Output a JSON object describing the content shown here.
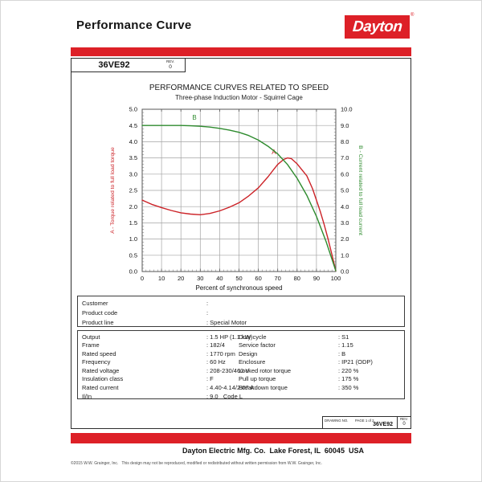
{
  "header": {
    "title": "Performance Curve",
    "brand": "Dayton",
    "registered": "®",
    "model": "36VE92",
    "rev_label": "REV.",
    "rev_value": "0"
  },
  "chart_data": {
    "type": "line",
    "title": "PERFORMANCE CURVES RELATED TO SPEED",
    "subtitle": "Three-phase Induction Motor - Squirrel Cage",
    "xlabel": "Percent of synchronous speed",
    "xlim": [
      0,
      100
    ],
    "x_ticks": [
      0,
      10,
      20,
      30,
      40,
      50,
      60,
      70,
      80,
      90,
      100
    ],
    "grid": true,
    "left_axis": {
      "label": "A - Torque related to full load torque",
      "lim": [
        0.0,
        5.0
      ],
      "ticks": [
        0.0,
        0.5,
        1.0,
        1.5,
        2.0,
        2.5,
        3.0,
        3.5,
        4.0,
        4.5,
        5.0
      ],
      "color": "#cc2227"
    },
    "right_axis": {
      "label": "B - Current related to full load current",
      "lim": [
        0.0,
        10.0
      ],
      "ticks": [
        0.0,
        1.0,
        2.0,
        3.0,
        4.0,
        5.0,
        6.0,
        7.0,
        8.0,
        9.0,
        10.0
      ],
      "color": "#2e8b2e"
    },
    "series": [
      {
        "name": "A",
        "axis": "left",
        "color": "#cc2227",
        "label_pos": {
          "x": 68,
          "y": 3.62
        },
        "points": [
          [
            0,
            2.2
          ],
          [
            5,
            2.07
          ],
          [
            10,
            1.97
          ],
          [
            15,
            1.88
          ],
          [
            20,
            1.81
          ],
          [
            25,
            1.77
          ],
          [
            30,
            1.75
          ],
          [
            35,
            1.79
          ],
          [
            40,
            1.87
          ],
          [
            45,
            1.98
          ],
          [
            50,
            2.12
          ],
          [
            55,
            2.33
          ],
          [
            60,
            2.58
          ],
          [
            65,
            2.92
          ],
          [
            68,
            3.15
          ],
          [
            70,
            3.3
          ],
          [
            73,
            3.45
          ],
          [
            75,
            3.5
          ],
          [
            77,
            3.48
          ],
          [
            80,
            3.32
          ],
          [
            83,
            3.1
          ],
          [
            85,
            2.95
          ],
          [
            88,
            2.55
          ],
          [
            90,
            2.2
          ],
          [
            92,
            1.85
          ],
          [
            94,
            1.45
          ],
          [
            96,
            1.0
          ],
          [
            98,
            0.52
          ],
          [
            100,
            0.02
          ]
        ]
      },
      {
        "name": "B",
        "axis": "right",
        "color": "#2e8b2e",
        "label_pos": {
          "x": 27,
          "y": 9.35
        },
        "points": [
          [
            0,
            9.0
          ],
          [
            5,
            9.0
          ],
          [
            10,
            9.0
          ],
          [
            15,
            9.0
          ],
          [
            20,
            9.0
          ],
          [
            25,
            8.98
          ],
          [
            30,
            8.95
          ],
          [
            35,
            8.9
          ],
          [
            40,
            8.82
          ],
          [
            45,
            8.72
          ],
          [
            50,
            8.58
          ],
          [
            55,
            8.38
          ],
          [
            60,
            8.1
          ],
          [
            65,
            7.72
          ],
          [
            70,
            7.25
          ],
          [
            75,
            6.6
          ],
          [
            80,
            5.75
          ],
          [
            85,
            4.7
          ],
          [
            90,
            3.4
          ],
          [
            95,
            1.85
          ],
          [
            100,
            0.05
          ]
        ]
      }
    ]
  },
  "customer_box": {
    "rows": [
      {
        "label": "Customer",
        "value": ""
      },
      {
        "label": "Product code",
        "value": ""
      },
      {
        "label": "Product line",
        "value": "Special Motor"
      }
    ]
  },
  "specs": {
    "left": [
      {
        "label": "Output",
        "value": "1.5 HP (1.1 kW)"
      },
      {
        "label": "Frame",
        "value": "182/4"
      },
      {
        "label": "Rated speed",
        "value": "1770 rpm"
      },
      {
        "label": "Frequency",
        "value": "60 Hz"
      },
      {
        "label": "Rated voltage",
        "value": "208-230/460 V"
      },
      {
        "label": "Insulation class",
        "value": "F"
      },
      {
        "label": "Rated current",
        "value": "4.40-4.14/2.07 A"
      },
      {
        "label": "Il/In",
        "value": "9.0   Code L"
      }
    ],
    "right": [
      {
        "label": "Duty cycle",
        "value": "S1"
      },
      {
        "label": "Service factor",
        "value": "1.15"
      },
      {
        "label": "Design",
        "value": "B"
      },
      {
        "label": "Enclosure",
        "value": "IP21 (ODP)"
      },
      {
        "label": "Locked rotor torque",
        "value": "220 %"
      },
      {
        "label": "Pull up torque",
        "value": "175 %"
      },
      {
        "label": "Breakdown torque",
        "value": "350 %"
      }
    ]
  },
  "drawing_box": {
    "drawing_no_label": "DRAWING NO.",
    "page_label": "PAGE 1 of 2",
    "drawing_no": "36VE92",
    "rev_label": "REV.",
    "rev_value": "0"
  },
  "footer": {
    "company": "Dayton Electric Mfg. Co.  Lake Forest, IL  60045  USA",
    "copyright": "©2015 W.W. Grainger, Inc.   This design may not be reproduced, modified or redistributed without written permission from W.W. Grainger, Inc."
  },
  "colors": {
    "brand_red": "#dd2027",
    "curve_red": "#cc2227",
    "curve_green": "#2e8b2e",
    "grid": "#a3a3a3"
  }
}
